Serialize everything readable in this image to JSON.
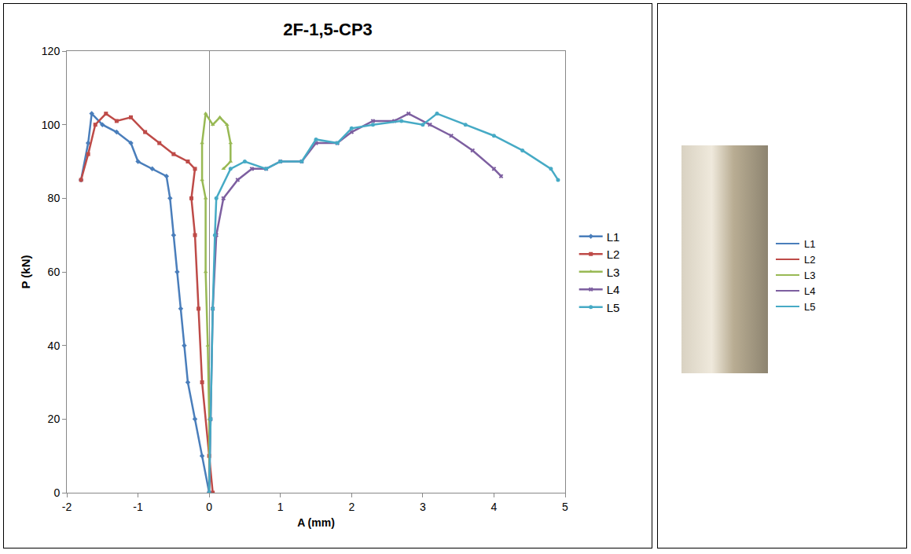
{
  "chart_data": {
    "type": "line",
    "title": "2F-1,5-CP3",
    "x_label": "A (mm)",
    "y_label": "P (kN)",
    "xlim": [
      -2,
      5
    ],
    "xticks": [
      -2,
      -1,
      0,
      1,
      2,
      3,
      4,
      5
    ],
    "ylim": [
      0,
      120
    ],
    "yticks": [
      0,
      20,
      40,
      60,
      80,
      100,
      120
    ],
    "grid": false,
    "legend": "right",
    "series": [
      {
        "name": "L1",
        "color": "#4a7ebb",
        "marker": "diamond",
        "x": [
          0,
          -0.1,
          -0.2,
          -0.3,
          -0.35,
          -0.4,
          -0.45,
          -0.5,
          -0.55,
          -0.6,
          -0.8,
          -1.0,
          -1.1,
          -1.3,
          -1.5,
          -1.65,
          -1.7,
          -1.8
        ],
        "values": [
          0,
          10,
          20,
          30,
          40,
          50,
          60,
          70,
          80,
          86,
          88,
          90,
          95,
          98,
          100,
          103,
          95,
          85
        ]
      },
      {
        "name": "L2",
        "color": "#be4b48",
        "marker": "square",
        "x": [
          0.05,
          0,
          -0.1,
          -0.15,
          -0.2,
          -0.25,
          -0.2,
          -0.3,
          -0.5,
          -0.7,
          -0.9,
          -1.1,
          -1.3,
          -1.45,
          -1.6,
          -1.7,
          -1.8
        ],
        "values": [
          0,
          10,
          30,
          50,
          70,
          80,
          88,
          90,
          92,
          95,
          98,
          102,
          101,
          103,
          100,
          92,
          85
        ]
      },
      {
        "name": "L3",
        "color": "#98b954",
        "marker": "triangle-up",
        "x": [
          0,
          0,
          -0.02,
          -0.05,
          -0.05,
          -0.1,
          -0.1,
          -0.05,
          0.05,
          0.15,
          0.25,
          0.3,
          0.3,
          0.2
        ],
        "values": [
          0,
          20,
          40,
          60,
          80,
          85,
          95,
          103,
          100,
          102,
          100,
          95,
          90,
          88
        ]
      },
      {
        "name": "L4",
        "color": "#7d5fa0",
        "marker": "x",
        "x": [
          0,
          0.02,
          0.05,
          0.1,
          0.2,
          0.4,
          0.6,
          0.8,
          1.0,
          1.3,
          1.5,
          1.8,
          2.0,
          2.3,
          2.6,
          2.8,
          3.1,
          3.4,
          3.7,
          4.0,
          4.1
        ],
        "values": [
          0,
          20,
          50,
          70,
          80,
          85,
          88,
          88,
          90,
          90,
          95,
          95,
          98,
          101,
          101,
          103,
          100,
          97,
          93,
          88,
          86
        ]
      },
      {
        "name": "L5",
        "color": "#46aac5",
        "marker": "circle",
        "x": [
          0,
          0.02,
          0.05,
          0.08,
          0.1,
          0.3,
          0.5,
          0.8,
          1.0,
          1.3,
          1.5,
          1.8,
          2.0,
          2.3,
          2.7,
          3.0,
          3.2,
          3.6,
          4.0,
          4.4,
          4.8,
          4.9
        ],
        "values": [
          0,
          20,
          50,
          70,
          80,
          88,
          90,
          88,
          90,
          90,
          96,
          95,
          99,
          100,
          101,
          100,
          103,
          100,
          97,
          93,
          88,
          85
        ]
      }
    ]
  }
}
